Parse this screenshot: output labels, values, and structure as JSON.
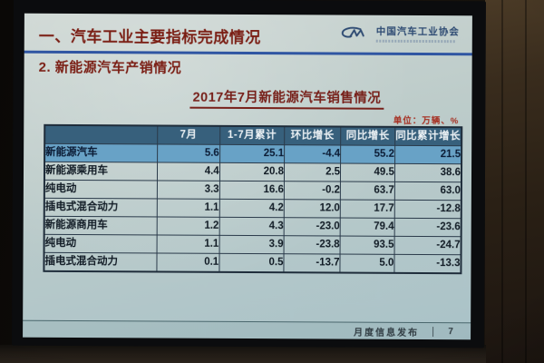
{
  "slide": {
    "section_title": "一、汽车工业主要指标完成情况",
    "subtitle": "2. 新能源汽车产销情况",
    "logo": {
      "org_name": "中国汽车工业协会"
    },
    "table_title": "2017年7月新能源汽车销售情况",
    "unit_note": "单位：万辆、%",
    "footer": {
      "label": "月度信息发布",
      "page": "7"
    }
  },
  "table": {
    "columns": [
      "",
      "7月",
      "1-7月累计",
      "环比增长",
      "同比增长",
      "同比累计增长"
    ],
    "rows": [
      {
        "label": "新能源汽车",
        "indent": 0,
        "highlight": true,
        "values": [
          "5.6",
          "25.1",
          "-4.4",
          "55.2",
          "21.5"
        ]
      },
      {
        "label": "新能源乘用车",
        "indent": 1,
        "highlight": false,
        "values": [
          "4.4",
          "20.8",
          "2.5",
          "49.5",
          "38.6"
        ]
      },
      {
        "label": "纯电动",
        "indent": 2,
        "highlight": false,
        "values": [
          "3.3",
          "16.6",
          "-0.2",
          "63.7",
          "63.0"
        ]
      },
      {
        "label": "插电式混合动力",
        "indent": 2,
        "highlight": false,
        "values": [
          "1.1",
          "4.2",
          "12.0",
          "17.7",
          "-12.8"
        ]
      },
      {
        "label": "新能源商用车",
        "indent": 1,
        "highlight": false,
        "values": [
          "1.2",
          "4.3",
          "-23.0",
          "79.4",
          "-23.6"
        ]
      },
      {
        "label": "纯电动",
        "indent": 2,
        "highlight": false,
        "values": [
          "1.1",
          "3.9",
          "-23.8",
          "93.5",
          "-24.7"
        ]
      },
      {
        "label": "插电式混合动力",
        "indent": 2,
        "highlight": false,
        "values": [
          "0.1",
          "0.5",
          "-13.7",
          "5.0",
          "-13.3"
        ]
      }
    ]
  },
  "colors": {
    "accent_red": "#7a1d13",
    "divider_blue": "#2f55a2",
    "table_header_bg": "#37607c",
    "highlight_row_bg": "#68a2c6",
    "logo_blue": "#2d4a72"
  }
}
